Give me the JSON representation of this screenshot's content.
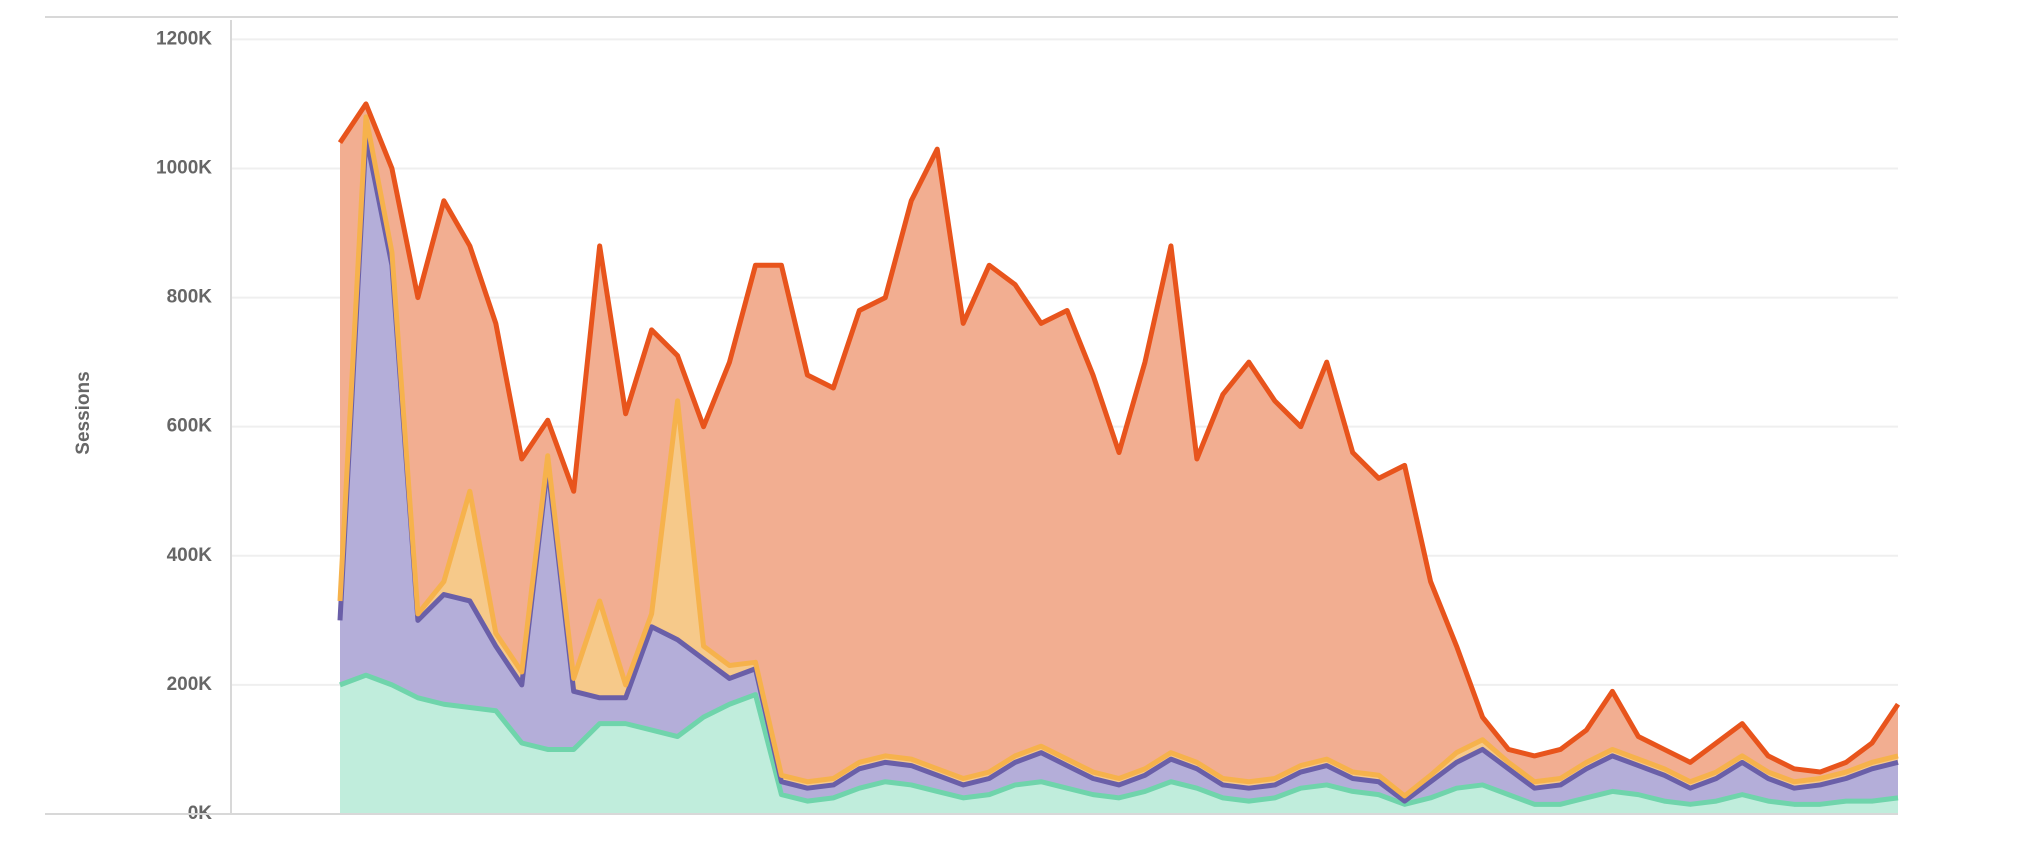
{
  "chart_data": {
    "type": "stacked_area",
    "y_label": "Sessions",
    "ylim": [
      0,
      1230000
    ],
    "yticks": [
      {
        "value": 0,
        "label": "0K"
      },
      {
        "value": 200000,
        "label": "200K"
      },
      {
        "value": 400000,
        "label": "400K"
      },
      {
        "value": 600000,
        "label": "600K"
      },
      {
        "value": 800000,
        "label": "800K"
      },
      {
        "value": 1000000,
        "label": "1000K"
      },
      {
        "value": 1200000,
        "label": "1200K"
      }
    ],
    "grid": true,
    "categories": [
      null,
      null,
      null,
      null,
      null,
      null,
      null,
      null,
      null,
      null,
      null,
      null,
      null,
      null,
      null,
      null,
      null,
      null,
      null,
      null,
      null,
      null,
      null,
      null,
      null,
      null,
      null,
      null,
      null,
      null,
      null,
      null,
      null,
      null,
      null,
      null,
      null,
      null,
      null,
      null,
      null,
      null,
      null,
      null,
      null,
      null,
      null,
      null,
      null,
      null,
      null,
      null,
      null,
      null,
      null,
      null,
      null,
      null,
      null,
      null,
      null
    ],
    "series": [
      {
        "color": "#6fd4ab",
        "fill": "#c0eddc",
        "values": [
          200000,
          215000,
          200000,
          180000,
          170000,
          165000,
          160000,
          110000,
          100000,
          100000,
          140000,
          140000,
          130000,
          120000,
          150000,
          170000,
          185000,
          30000,
          20000,
          25000,
          40000,
          50000,
          45000,
          35000,
          25000,
          30000,
          45000,
          50000,
          40000,
          30000,
          25000,
          35000,
          50000,
          40000,
          25000,
          20000,
          25000,
          40000,
          45000,
          35000,
          30000,
          15000,
          25000,
          40000,
          45000,
          30000,
          15000,
          15000,
          25000,
          35000,
          30000,
          20000,
          15000,
          20000,
          30000,
          20000,
          15000,
          15000,
          20000,
          20000,
          25000
        ]
      },
      {
        "color": "#6a5fa8",
        "fill": "#b4aed9",
        "values": [
          100000,
          835000,
          650000,
          120000,
          170000,
          165000,
          100000,
          90000,
          440000,
          90000,
          40000,
          40000,
          160000,
          150000,
          90000,
          40000,
          40000,
          20000,
          20000,
          20000,
          30000,
          30000,
          30000,
          25000,
          20000,
          25000,
          35000,
          45000,
          35000,
          25000,
          20000,
          25000,
          35000,
          30000,
          20000,
          20000,
          20000,
          25000,
          30000,
          20000,
          20000,
          5000,
          25000,
          40000,
          55000,
          40000,
          25000,
          30000,
          45000,
          55000,
          45000,
          40000,
          25000,
          35000,
          50000,
          35000,
          25000,
          30000,
          35000,
          50000,
          55000
        ]
      },
      {
        "color": "#f6b24c",
        "fill": "#f6c98a",
        "values": [
          30000,
          30000,
          20000,
          10000,
          20000,
          170000,
          20000,
          20000,
          15000,
          20000,
          150000,
          20000,
          20000,
          370000,
          20000,
          20000,
          10000,
          10000,
          10000,
          10000,
          10000,
          10000,
          10000,
          10000,
          10000,
          10000,
          10000,
          10000,
          10000,
          10000,
          10000,
          10000,
          10000,
          10000,
          10000,
          10000,
          10000,
          10000,
          10000,
          10000,
          10000,
          8000,
          10000,
          15000,
          15000,
          10000,
          10000,
          10000,
          10000,
          10000,
          10000,
          10000,
          10000,
          10000,
          10000,
          10000,
          10000,
          10000,
          10000,
          10000,
          10000
        ]
      },
      {
        "color": "#e8541c",
        "fill": "#f2ae91",
        "values": [
          710000,
          20000,
          130000,
          490000,
          590000,
          380000,
          480000,
          330000,
          55000,
          290000,
          550000,
          420000,
          440000,
          70000,
          340000,
          470000,
          615000,
          790000,
          630000,
          605000,
          700000,
          710000,
          865000,
          960000,
          705000,
          785000,
          730000,
          655000,
          695000,
          615000,
          505000,
          630000,
          785000,
          470000,
          595000,
          650000,
          585000,
          525000,
          615000,
          495000,
          460000,
          512000,
          300000,
          165000,
          35000,
          20000,
          40000,
          45000,
          50000,
          90000,
          35000,
          30000,
          30000,
          45000,
          50000,
          25000,
          20000,
          10000,
          15000,
          30000,
          80000
        ]
      }
    ]
  }
}
